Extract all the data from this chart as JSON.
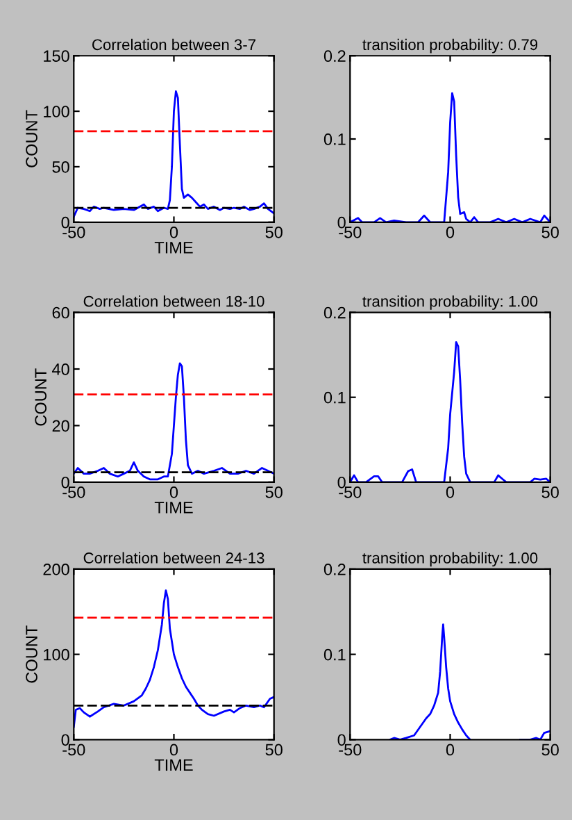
{
  "chart_data": [
    {
      "type": "line",
      "title": "Correlation between 3-7",
      "xlabel": "TIME",
      "ylabel": "COUNT",
      "xlim": [
        -50,
        50
      ],
      "xticks": [
        -50,
        0,
        50
      ],
      "ylim": [
        0,
        150
      ],
      "yticks": [
        0,
        50,
        100,
        150
      ],
      "grid": false,
      "x": [
        -50,
        -48,
        -45,
        -42,
        -40,
        -37,
        -35,
        -30,
        -25,
        -20,
        -15,
        -13,
        -10,
        -8,
        -5,
        -3,
        -2,
        -1,
        0,
        1,
        2,
        3,
        4,
        5,
        7,
        9,
        11,
        13,
        15,
        17,
        20,
        23,
        25,
        28,
        30,
        33,
        35,
        38,
        40,
        43,
        45,
        47,
        50
      ],
      "series": [
        {
          "color": "#0000ff",
          "values": [
            5,
            13,
            12,
            10,
            14,
            12,
            13,
            11,
            12,
            11,
            16,
            12,
            14,
            10,
            13,
            12,
            20,
            50,
            100,
            118,
            112,
            70,
            30,
            22,
            25,
            22,
            18,
            14,
            16,
            12,
            14,
            11,
            13,
            12,
            13,
            12,
            14,
            11,
            12,
            14,
            17,
            12,
            8
          ]
        }
      ],
      "ref_lines": [
        {
          "axis": "y",
          "value": 82,
          "color": "#ff0000",
          "line_style": "dashed"
        },
        {
          "axis": "y",
          "value": 13,
          "color": "#000000",
          "line_style": "dashed"
        }
      ]
    },
    {
      "type": "line",
      "title": "transition probability: 0.79",
      "xlim": [
        -50,
        50
      ],
      "xticks": [
        -50,
        0,
        50
      ],
      "ylim": [
        0,
        0.2
      ],
      "yticks": [
        0,
        0.1,
        0.2
      ],
      "grid": false,
      "x": [
        -50,
        -46,
        -44,
        -38,
        -35,
        -32,
        -28,
        -22,
        -16,
        -13,
        -10,
        -5,
        -3,
        -1,
        0,
        1,
        2,
        3,
        4,
        5,
        7,
        8,
        10,
        12,
        14,
        20,
        24,
        28,
        32,
        36,
        40,
        45,
        47,
        50
      ],
      "series": [
        {
          "color": "#0000ff",
          "values": [
            0,
            0.005,
            0,
            0,
            0.005,
            0,
            0.002,
            0,
            0,
            0.008,
            0,
            0,
            0,
            0.06,
            0.12,
            0.155,
            0.145,
            0.08,
            0.03,
            0.01,
            0.012,
            0.004,
            0,
            0.006,
            0,
            0,
            0.004,
            0,
            0.004,
            0,
            0.004,
            0,
            0.008,
            0
          ]
        }
      ]
    },
    {
      "type": "line",
      "title": "Correlation between 18-10",
      "xlabel": "TIME",
      "ylabel": "COUNT",
      "xlim": [
        -50,
        50
      ],
      "xticks": [
        -50,
        0,
        50
      ],
      "ylim": [
        0,
        60
      ],
      "yticks": [
        0,
        20,
        40,
        60
      ],
      "grid": false,
      "x": [
        -50,
        -48,
        -45,
        -42,
        -38,
        -35,
        -32,
        -28,
        -25,
        -22,
        -20,
        -18,
        -15,
        -12,
        -8,
        -5,
        -3,
        -1,
        0,
        1,
        2,
        3,
        4,
        5,
        6,
        7,
        9,
        12,
        15,
        20,
        24,
        28,
        32,
        36,
        40,
        44,
        47,
        50
      ],
      "series": [
        {
          "color": "#0000ff",
          "values": [
            3,
            5,
            3,
            3,
            4,
            5,
            3,
            2,
            3,
            4,
            7,
            4,
            2,
            1,
            1,
            2,
            2,
            10,
            20,
            30,
            38,
            42,
            41,
            30,
            15,
            6,
            3,
            4,
            3,
            4,
            5,
            3,
            3,
            4,
            3,
            5,
            4,
            3
          ]
        }
      ],
      "ref_lines": [
        {
          "axis": "y",
          "value": 31,
          "color": "#ff0000",
          "line_style": "dashed"
        },
        {
          "axis": "y",
          "value": 3.5,
          "color": "#000000",
          "line_style": "dashed"
        }
      ]
    },
    {
      "type": "line",
      "title": "transition probability: 1.00",
      "xlim": [
        -50,
        50
      ],
      "xticks": [
        -50,
        0,
        50
      ],
      "ylim": [
        0,
        0.2
      ],
      "yticks": [
        0,
        0.1,
        0.2
      ],
      "grid": false,
      "x": [
        -50,
        -48,
        -46,
        -42,
        -38,
        -36,
        -34,
        -24,
        -21,
        -19,
        -17,
        -5,
        -3,
        -1,
        0,
        2,
        3,
        4,
        5,
        6,
        7,
        8,
        10,
        22,
        24,
        26,
        28,
        40,
        42,
        45,
        48,
        50
      ],
      "series": [
        {
          "color": "#0000ff",
          "values": [
            0,
            0.008,
            0,
            0,
            0.007,
            0.007,
            0,
            0,
            0.013,
            0.015,
            0,
            0,
            0,
            0.04,
            0.08,
            0.13,
            0.165,
            0.16,
            0.12,
            0.07,
            0.03,
            0.01,
            0,
            0,
            0.008,
            0.004,
            0,
            0,
            0.004,
            0.003,
            0.004,
            0
          ]
        }
      ]
    },
    {
      "type": "line",
      "title": "Correlation between 24-13",
      "xlabel": "TIME",
      "ylabel": "COUNT",
      "xlim": [
        -50,
        50
      ],
      "xticks": [
        -50,
        0,
        50
      ],
      "ylim": [
        0,
        200
      ],
      "yticks": [
        0,
        100,
        200
      ],
      "grid": false,
      "x": [
        -50,
        -49,
        -47,
        -45,
        -42,
        -38,
        -35,
        -30,
        -25,
        -20,
        -16,
        -14,
        -12,
        -10,
        -8,
        -6,
        -5,
        -4,
        -3,
        -2,
        -1,
        0,
        2,
        4,
        6,
        8,
        10,
        12,
        14,
        17,
        20,
        25,
        28,
        30,
        33,
        36,
        40,
        43,
        45,
        48,
        50
      ],
      "series": [
        {
          "color": "#0000ff",
          "values": [
            15,
            35,
            37,
            32,
            27,
            33,
            38,
            42,
            40,
            45,
            52,
            60,
            70,
            85,
            105,
            135,
            160,
            175,
            165,
            130,
            115,
            100,
            85,
            72,
            62,
            55,
            48,
            40,
            35,
            30,
            28,
            33,
            35,
            32,
            37,
            40,
            38,
            40,
            38,
            48,
            50
          ]
        }
      ],
      "ref_lines": [
        {
          "axis": "y",
          "value": 143,
          "color": "#ff0000",
          "line_style": "dashed"
        },
        {
          "axis": "y",
          "value": 40,
          "color": "#000000",
          "line_style": "dashed"
        }
      ]
    },
    {
      "type": "line",
      "title": "transition probability: 1.00",
      "xlim": [
        -50,
        50
      ],
      "xticks": [
        -50,
        0,
        50
      ],
      "ylim": [
        0,
        0.2
      ],
      "yticks": [
        0,
        0.1,
        0.2
      ],
      "grid": false,
      "x": [
        -30,
        -28,
        -25,
        -22,
        -18,
        -15,
        -12,
        -10,
        -8,
        -6,
        -5,
        -4,
        -3.5,
        -3,
        -2,
        -1,
        0,
        2,
        4,
        6,
        8,
        10,
        20,
        35,
        40,
        43,
        45,
        47,
        50
      ],
      "series": [
        {
          "color": "#0000ff",
          "values": [
            0,
            0.002,
            0,
            0.002,
            0.005,
            0.015,
            0.025,
            0.03,
            0.04,
            0.055,
            0.08,
            0.12,
            0.135,
            0.12,
            0.085,
            0.06,
            0.045,
            0.03,
            0.02,
            0.012,
            0.005,
            0,
            null,
            0,
            0,
            0.002,
            0,
            0.008,
            0.01
          ]
        }
      ]
    }
  ]
}
